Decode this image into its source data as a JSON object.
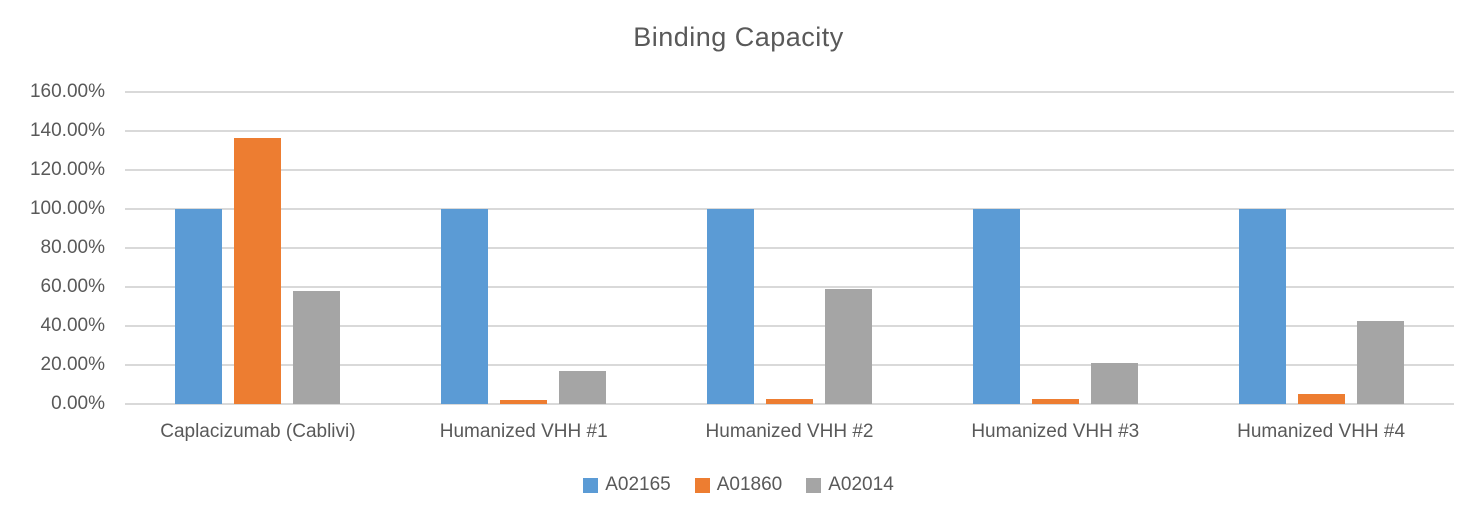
{
  "title": "Binding Capacity",
  "colors": {
    "background": "#FFFFFF",
    "text": "#595959",
    "gridline": "#D9D9D9",
    "axis_line": "#D9D9D9",
    "series_blue": "#5B9BD5",
    "series_orange": "#ED7D31",
    "series_gray": "#A5A5A5"
  },
  "chart_data": {
    "type": "bar",
    "title": "Binding Capacity",
    "xlabel": "",
    "ylabel": "",
    "categories": [
      "Caplacizumab (Cablivi)",
      "Humanized VHH #1",
      "Humanized VHH #2",
      "Humanized VHH #3",
      "Humanized VHH #4"
    ],
    "series": [
      {
        "name": "A02165",
        "color": "#5B9BD5",
        "values": [
          100.0,
          100.0,
          100.0,
          100.0,
          100.0
        ]
      },
      {
        "name": "A01860",
        "color": "#ED7D31",
        "values": [
          136.5,
          1.9,
          2.8,
          2.5,
          5.2
        ]
      },
      {
        "name": "A02014",
        "color": "#A5A5A5",
        "values": [
          57.8,
          16.7,
          58.8,
          21.1,
          42.7
        ]
      }
    ],
    "y_axis": {
      "min": 0,
      "max": 160,
      "step": 20,
      "tick_labels": [
        "160.00%",
        "140.00%",
        "120.00%",
        "100.00%",
        "80.00%",
        "60.00%",
        "40.00%",
        "20.00%",
        "0.00%"
      ]
    },
    "grid": true,
    "legend_position": "bottom",
    "legend_entries": [
      "A02165",
      "A01860",
      "A02014"
    ]
  }
}
